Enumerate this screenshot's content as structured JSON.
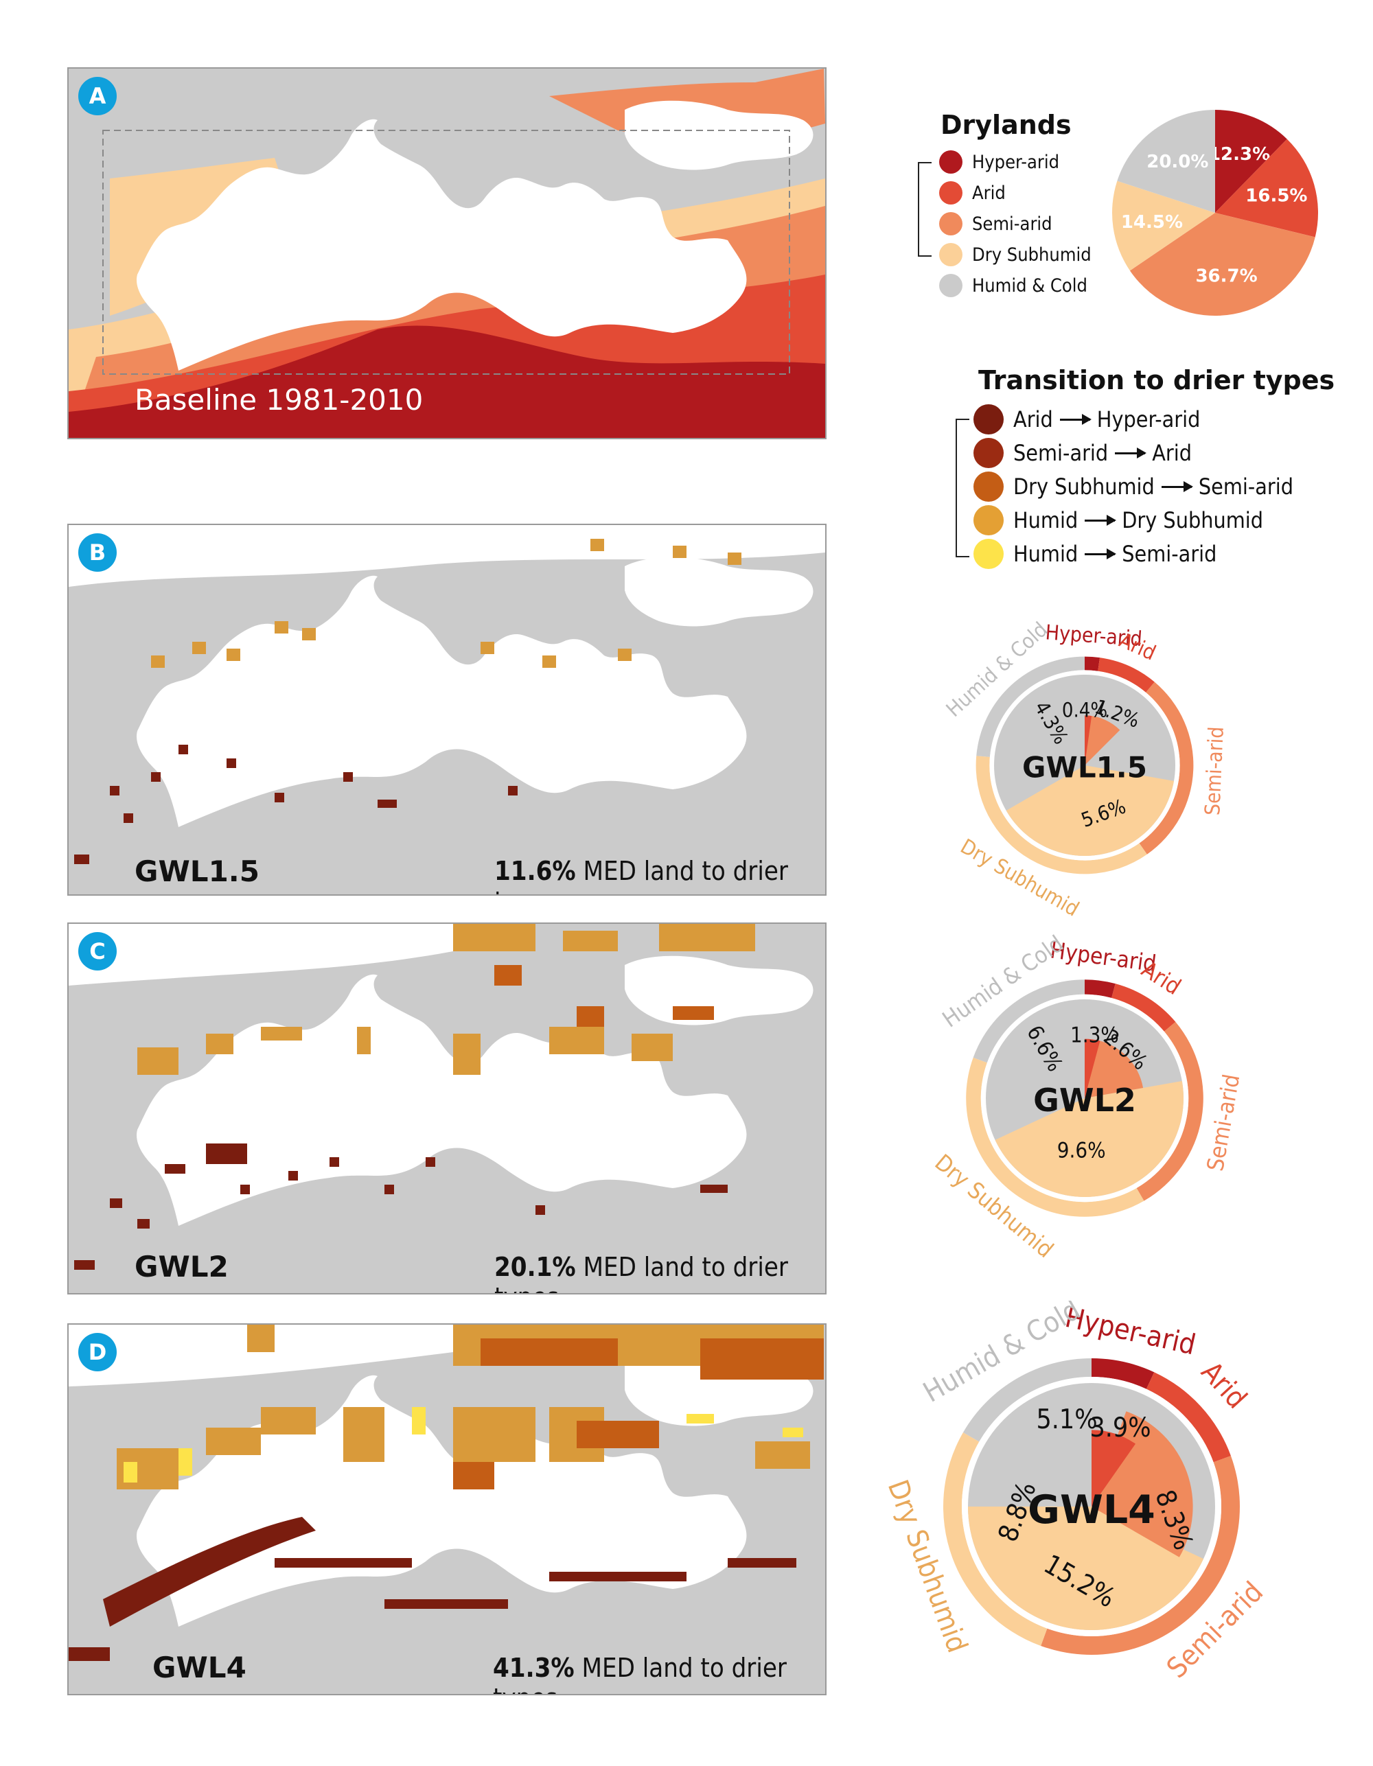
{
  "panels": [
    {
      "badge": "A",
      "title": "Baseline 1981-2010",
      "caption_pct": "",
      "caption_text": ""
    },
    {
      "badge": "B",
      "title": "GWL1.5",
      "caption_pct": "11.6%",
      "caption_text": "MED land to drier types"
    },
    {
      "badge": "C",
      "title": "GWL2",
      "caption_pct": "20.1%",
      "caption_text": "MED land to drier types"
    },
    {
      "badge": "D",
      "title": "GWL4",
      "caption_pct": "41.3%",
      "caption_text": "MED land to drier types"
    }
  ],
  "drylands_legend": {
    "title": "Drylands",
    "items": [
      {
        "label": "Hyper-arid",
        "color": "#b0191e"
      },
      {
        "label": "Arid",
        "color": "#e34b35"
      },
      {
        "label": "Semi-arid",
        "color": "#f08a5c"
      },
      {
        "label": "Dry Subhumid",
        "color": "#fbd098"
      },
      {
        "label": "Humid & Cold",
        "color": "#cbcbcb"
      }
    ]
  },
  "transition_legend": {
    "title": "Transition to drier types",
    "items": [
      {
        "from": "Arid",
        "to": "Hyper-arid",
        "color": "#7a1d0f"
      },
      {
        "from": "Semi-arid",
        "to": "Arid",
        "color": "#9b2b12"
      },
      {
        "from": "Dry Subhumid",
        "to": "Semi-arid",
        "color": "#c45d15"
      },
      {
        "from": "Humid",
        "to": "Dry Subhumid",
        "color": "#e4a034"
      },
      {
        "from": "Humid",
        "to": "Semi-arid",
        "color": "#fde34a"
      }
    ]
  },
  "chart_data": [
    {
      "type": "pie",
      "title": "",
      "categories": [
        "Hyper-arid",
        "Arid",
        "Semi-arid",
        "Dry Subhumid",
        "Humid & Cold"
      ],
      "values": [
        12.3,
        16.5,
        36.7,
        14.5,
        20.0
      ],
      "labels": [
        "12.3%",
        "16.5%",
        "36.7%",
        "14.5%",
        "20.0%"
      ]
    },
    {
      "type": "pie",
      "title": "GWL1.5",
      "ring_categories": [
        "Hyper-arid",
        "Arid",
        "Semi-arid",
        "Dry Subhumid",
        "Humid & Cold"
      ],
      "inner_labels": [
        "0.4%",
        "1.2%",
        "5.6%",
        "4.3%"
      ]
    },
    {
      "type": "pie",
      "title": "GWL2",
      "ring_categories": [
        "Hyper-arid",
        "Arid",
        "Semi-arid",
        "Dry Subhumid",
        "Humid & Cold"
      ],
      "inner_labels": [
        "1.3%",
        "2.6%",
        "9.6%",
        "6.6%"
      ]
    },
    {
      "type": "pie",
      "title": "GWL4",
      "ring_categories": [
        "Hyper-arid",
        "Arid",
        "Semi-arid",
        "Dry Subhumid",
        "Humid & Cold"
      ],
      "inner_labels": [
        "3.9%",
        "8.3%",
        "15.2%",
        "8.8%",
        "5.1%"
      ]
    }
  ]
}
